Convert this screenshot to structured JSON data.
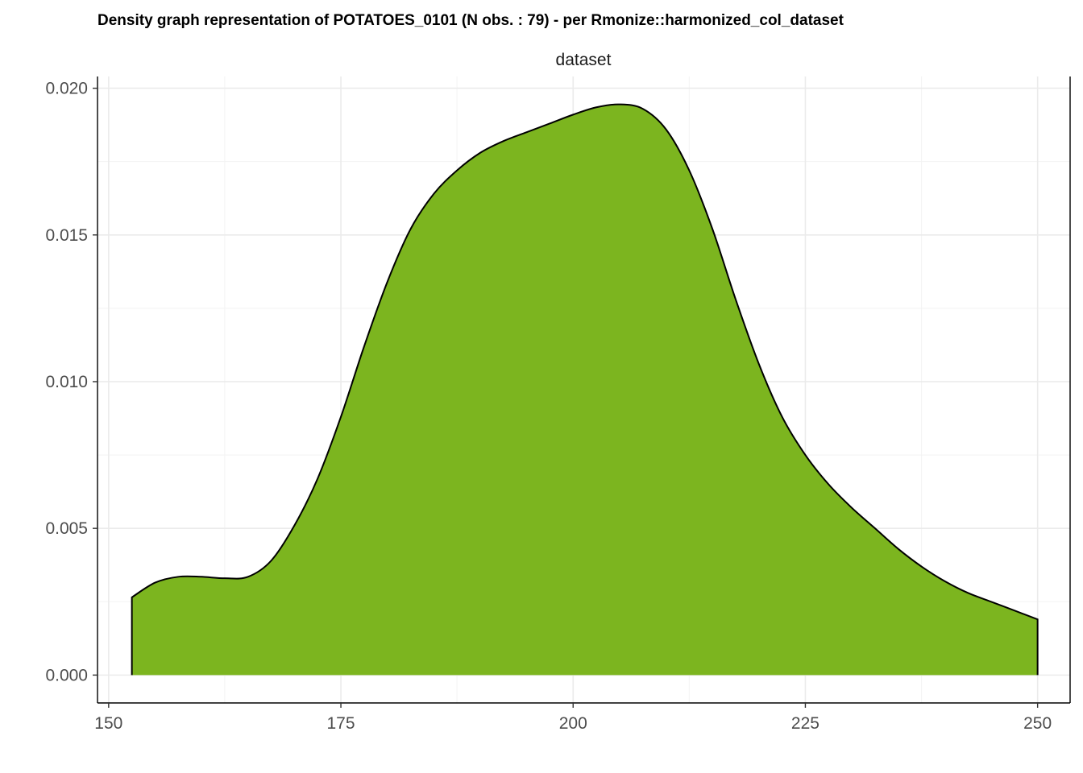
{
  "chart_data": {
    "type": "area",
    "title": "Density graph representation of POTATOES_0101 (N obs. : 79) - per Rmonize::harmonized_col_dataset",
    "facet_label": "dataset",
    "xlabel": "",
    "ylabel": "",
    "xlim": [
      148.8,
      253.5
    ],
    "ylim": [
      -0.00095,
      0.0204
    ],
    "x_ticks": [
      150,
      175,
      200,
      225,
      250
    ],
    "x_tick_labels": [
      "150",
      "175",
      "200",
      "225",
      "250"
    ],
    "y_ticks": [
      0.0,
      0.005,
      0.01,
      0.015,
      0.02
    ],
    "y_tick_labels": [
      "0.000",
      "0.005",
      "0.010",
      "0.015",
      "0.020"
    ],
    "grid": true,
    "fill_color": "#7cb51f",
    "line_color": "#000000",
    "series": [
      {
        "x": [
          152.5,
          155,
          157.5,
          160,
          162.5,
          165,
          167.5,
          170,
          172.5,
          175,
          177.5,
          180,
          182.5,
          185,
          187.5,
          190,
          192.5,
          195,
          197.5,
          200,
          202.5,
          205,
          207.5,
          210,
          212.5,
          215,
          217.5,
          220,
          222.5,
          225,
          227.5,
          230,
          232.5,
          235,
          237.5,
          240,
          242.5,
          245,
          247.5,
          250
        ],
        "values": [
          0.00265,
          0.00315,
          0.00335,
          0.00335,
          0.0033,
          0.00335,
          0.0039,
          0.0051,
          0.0067,
          0.0088,
          0.0112,
          0.0134,
          0.0152,
          0.0164,
          0.0172,
          0.0178,
          0.0182,
          0.0185,
          0.0188,
          0.0191,
          0.01935,
          0.01945,
          0.0193,
          0.0186,
          0.0172,
          0.0152,
          0.0128,
          0.0106,
          0.0088,
          0.0075,
          0.0065,
          0.0057,
          0.005,
          0.0043,
          0.0037,
          0.0032,
          0.0028,
          0.0025,
          0.0022,
          0.0019
        ]
      }
    ]
  }
}
